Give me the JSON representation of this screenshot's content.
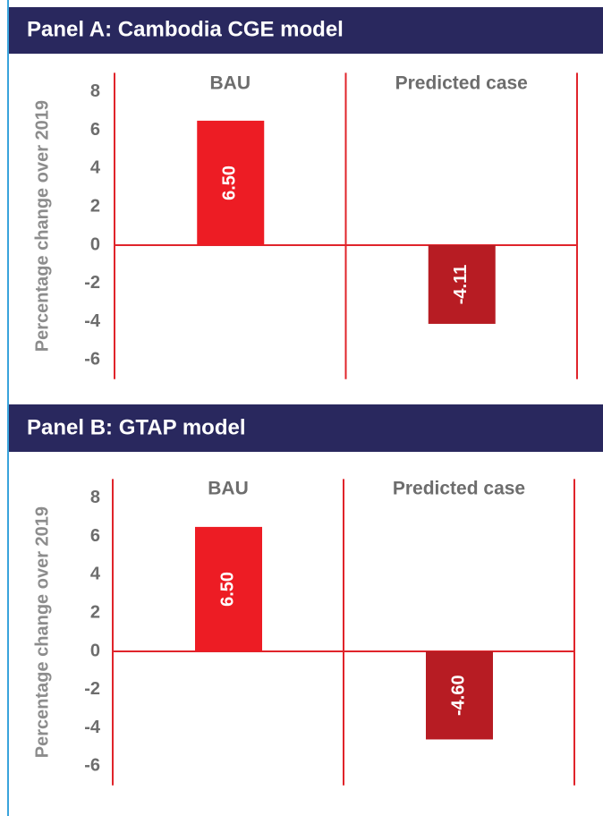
{
  "chart_data": [
    {
      "type": "bar",
      "title": "Panel A: Cambodia CGE model",
      "y_label": "Percentage change over 2019",
      "categories": [
        "BAU",
        "Predicted case"
      ],
      "values": [
        6.5,
        -4.11
      ],
      "value_labels": [
        "6.50",
        "-4.11"
      ],
      "colors": [
        "#ed1c24",
        "#b71c23"
      ],
      "ylim": [
        -7,
        9
      ],
      "yticks": [
        -6,
        -4,
        -2,
        0,
        2,
        4,
        6,
        8
      ]
    },
    {
      "type": "bar",
      "title": "Panel B: GTAP model",
      "y_label": "Percentage change over 2019",
      "categories": [
        "BAU",
        "Predicted case"
      ],
      "values": [
        6.5,
        -4.6
      ],
      "value_labels": [
        "6.50",
        "-4.60"
      ],
      "colors": [
        "#ed1c24",
        "#b71c23"
      ],
      "ylim": [
        -7,
        9
      ],
      "yticks": [
        -6,
        -4,
        -2,
        0,
        2,
        4,
        6,
        8
      ]
    }
  ]
}
